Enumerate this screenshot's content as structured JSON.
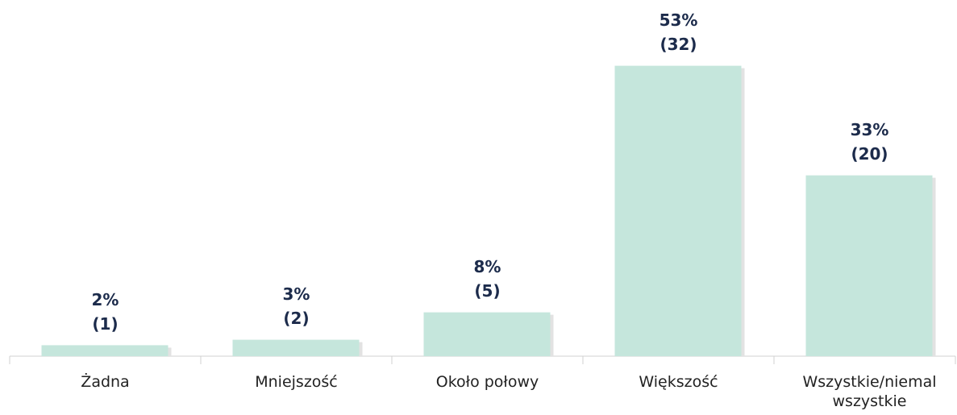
{
  "chart_data": {
    "type": "bar",
    "categories": [
      "Żadna",
      "Mniejszość",
      "Około połowy",
      "Większość",
      "Wszystkie/niemal wszystkie"
    ],
    "values": [
      2,
      3,
      8,
      53,
      33
    ],
    "value_labels": [
      "2%",
      "3%",
      "8%",
      "53%",
      "33%"
    ],
    "counts": [
      1,
      2,
      5,
      32,
      20
    ],
    "count_labels": [
      "(1)",
      "(2)",
      "(5)",
      "(32)",
      "(20)"
    ],
    "color": "#c5e6dc",
    "ylim": [
      0,
      65
    ]
  }
}
